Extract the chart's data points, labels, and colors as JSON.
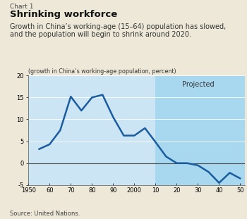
{
  "chart_label": "Chart 1",
  "title": "Shrinking workforce",
  "subtitle_line1": "Growth in China’s working-age (15–64) population has slowed,",
  "subtitle_line2": "and the population will begin to shrink around 2020.",
  "axis_label": "(growth in China’s working-age population, percent)",
  "source": "Source: United Nations.",
  "projected_label": "Projected",
  "projected_start": 2010,
  "xlim": [
    1950,
    2052
  ],
  "ylim": [
    -5,
    20
  ],
  "xticks": [
    1950,
    1960,
    1970,
    1980,
    1990,
    2000,
    2010,
    2020,
    2030,
    2040,
    2050
  ],
  "xticklabels": [
    "1950",
    "60",
    "70",
    "80",
    "90",
    "2000",
    "10",
    "20",
    "30",
    "40",
    "50"
  ],
  "yticks": [
    -5,
    0,
    5,
    10,
    15,
    20
  ],
  "bg_color": "#ede8d8",
  "plot_bg_historical": "#cce5f5",
  "plot_bg_projected": "#a8d8f0",
  "line_color": "#1a5c9e",
  "line_width": 1.8,
  "x": [
    1955,
    1960,
    1965,
    1970,
    1975,
    1980,
    1985,
    1990,
    1995,
    2000,
    2005,
    2010,
    2015,
    2020,
    2025,
    2030,
    2035,
    2040,
    2045,
    2050
  ],
  "y": [
    3.2,
    4.3,
    7.5,
    15.2,
    12.0,
    15.0,
    15.6,
    10.5,
    6.3,
    6.3,
    8.0,
    4.8,
    1.5,
    0.0,
    0.0,
    -0.5,
    -2.0,
    -4.5,
    -2.2,
    -3.5
  ]
}
